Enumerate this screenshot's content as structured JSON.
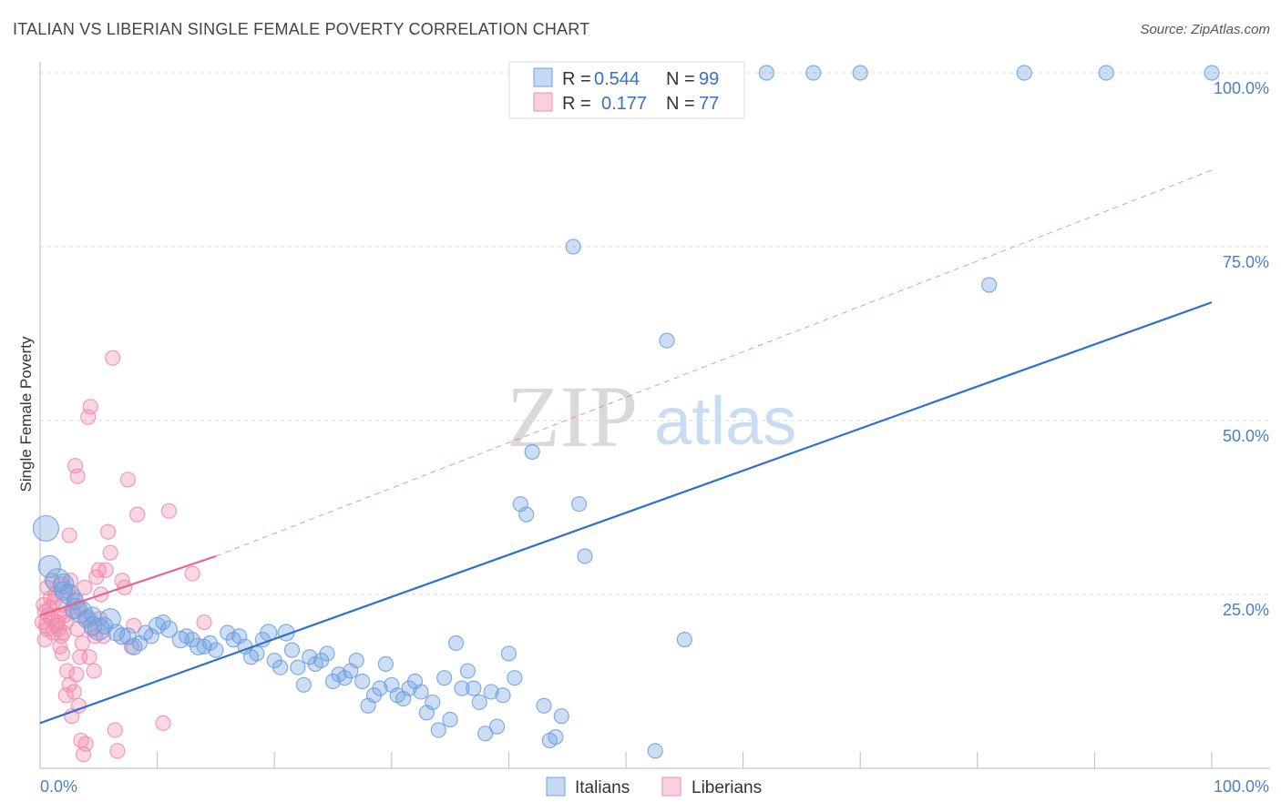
{
  "header": {
    "title": "ITALIAN VS LIBERIAN SINGLE FEMALE POVERTY CORRELATION CHART",
    "source": "Source: ZipAtlas.com"
  },
  "colors": {
    "italians": "#6fa0e0",
    "italians_line": "#2f6fd0",
    "liberians": "#f08cab",
    "liberians_line": "#e06890",
    "grid": "#d8d8d8",
    "tick_label": "#4a7ec8"
  },
  "legend": {
    "r_label": "R =",
    "n_label": "N =",
    "italians_r": "0.544",
    "italians_n": "99",
    "liberians_r": "0.177",
    "liberians_n": "77"
  },
  "watermark": {
    "zip": "ZIP",
    "atlas": "atlas"
  },
  "chart_data": {
    "type": "scatter",
    "title": "ITALIAN VS LIBERIAN SINGLE FEMALE POVERTY CORRELATION CHART",
    "xlabel": "",
    "ylabel": "Single Female Poverty",
    "xlim": [
      0,
      100
    ],
    "ylim": [
      0,
      100
    ],
    "x_tick_labels": [
      "0.0%",
      "100.0%"
    ],
    "y_tick_labels": [
      "25.0%",
      "50.0%",
      "75.0%",
      "100.0%"
    ],
    "y_ticks": [
      25,
      50,
      75,
      100
    ],
    "legend_position": "top-center",
    "series": [
      {
        "name": "Italians",
        "r": 0.544,
        "n": 99,
        "trend": {
          "x": [
            0,
            100
          ],
          "y": [
            6.5,
            67
          ]
        },
        "points": [
          [
            0.5,
            34.5,
            14
          ],
          [
            0.8,
            29,
            12
          ],
          [
            1.5,
            27,
            13
          ],
          [
            2,
            26.5,
            11
          ],
          [
            2.5,
            25,
            11
          ],
          [
            3,
            23,
            11
          ],
          [
            3.5,
            22.5,
            12
          ],
          [
            4,
            21.5,
            10
          ],
          [
            4.5,
            20.5,
            10
          ],
          [
            5,
            20,
            12
          ],
          [
            5.5,
            20.5,
            9
          ],
          [
            6,
            21.5,
            11
          ],
          [
            6.5,
            19.5,
            9
          ],
          [
            7,
            19,
            9
          ],
          [
            7.5,
            19,
            9
          ],
          [
            8,
            17.5,
            9
          ],
          [
            8.5,
            18,
            8
          ],
          [
            9,
            19.5,
            8
          ],
          [
            9.5,
            19,
            8
          ],
          [
            10,
            20.5,
            9
          ],
          [
            10.5,
            21,
            8
          ],
          [
            11,
            20,
            9
          ],
          [
            12,
            18.5,
            9
          ],
          [
            12.5,
            19,
            8
          ],
          [
            13,
            18.5,
            8
          ],
          [
            13.5,
            17.5,
            9
          ],
          [
            14,
            17.5,
            8
          ],
          [
            14.5,
            18,
            8
          ],
          [
            15,
            17,
            8
          ],
          [
            16,
            19.5,
            8
          ],
          [
            16.5,
            18.5,
            8
          ],
          [
            17,
            19,
            8
          ],
          [
            17.5,
            17.5,
            8
          ],
          [
            18,
            16,
            8
          ],
          [
            18.5,
            16.5,
            8
          ],
          [
            19,
            18.5,
            8
          ],
          [
            19.5,
            19.5,
            9
          ],
          [
            20,
            15.5,
            8
          ],
          [
            20.5,
            14.5,
            8
          ],
          [
            21,
            19.5,
            9
          ],
          [
            21.5,
            17,
            8
          ],
          [
            22,
            14.5,
            8
          ],
          [
            22.5,
            12,
            8
          ],
          [
            23,
            16,
            8
          ],
          [
            23.5,
            15,
            8
          ],
          [
            24,
            15.5,
            8
          ],
          [
            24.5,
            16.5,
            8
          ],
          [
            25,
            12.5,
            8
          ],
          [
            25.5,
            13.5,
            8
          ],
          [
            26,
            13,
            8
          ],
          [
            26.5,
            14,
            8
          ],
          [
            27,
            15.5,
            8
          ],
          [
            27.5,
            12.5,
            8
          ],
          [
            28,
            9,
            8
          ],
          [
            28.5,
            10.5,
            8
          ],
          [
            29,
            11.5,
            8
          ],
          [
            29.5,
            15,
            8
          ],
          [
            30,
            12,
            8
          ],
          [
            30.5,
            10.5,
            8
          ],
          [
            31,
            10,
            8
          ],
          [
            31.5,
            11.5,
            8
          ],
          [
            32,
            12.5,
            8
          ],
          [
            32.5,
            11,
            8
          ],
          [
            33,
            8,
            8
          ],
          [
            33.5,
            9.5,
            8
          ],
          [
            34,
            5.5,
            8
          ],
          [
            34.5,
            13,
            8
          ],
          [
            35,
            7,
            8
          ],
          [
            35.5,
            18,
            8
          ],
          [
            36,
            11.5,
            8
          ],
          [
            36.5,
            14,
            8
          ],
          [
            37,
            11.5,
            8
          ],
          [
            37.5,
            9.5,
            8
          ],
          [
            38,
            5,
            8
          ],
          [
            38.5,
            11,
            8
          ],
          [
            39,
            6,
            8
          ],
          [
            39.5,
            10.5,
            8
          ],
          [
            40,
            16.5,
            8
          ],
          [
            40.5,
            13,
            8
          ],
          [
            41,
            38,
            8
          ],
          [
            41.5,
            36.5,
            8
          ],
          [
            42,
            45.5,
            8
          ],
          [
            43,
            9,
            8
          ],
          [
            43.5,
            4,
            8
          ],
          [
            44,
            4.5,
            8
          ],
          [
            44.5,
            7.5,
            8
          ],
          [
            46,
            38,
            8
          ],
          [
            46.5,
            30.5,
            8
          ],
          [
            45.5,
            75,
            8
          ],
          [
            52.5,
            2.5,
            8
          ],
          [
            53.5,
            61.5,
            8
          ],
          [
            55,
            18.5,
            8
          ],
          [
            62,
            100,
            8
          ],
          [
            66,
            100,
            8
          ],
          [
            70,
            100,
            8
          ],
          [
            81,
            69.5,
            8
          ],
          [
            84,
            100,
            8
          ],
          [
            91,
            100,
            8
          ],
          [
            100,
            100,
            8
          ],
          [
            4.5,
            22,
            9
          ],
          [
            3,
            24,
            9
          ],
          [
            2,
            25.5,
            10
          ]
        ]
      },
      {
        "name": "Liberians",
        "r": 0.177,
        "n": 77,
        "trend": {
          "x": [
            0,
            15
          ],
          "y": [
            22,
            30.5
          ]
        },
        "trend_extension": {
          "x": [
            15,
            100
          ],
          "y": [
            30.5,
            86
          ]
        },
        "points": [
          [
            0.2,
            21,
            8
          ],
          [
            0.4,
            22.5,
            8
          ],
          [
            0.6,
            20,
            8
          ],
          [
            0.8,
            23,
            8
          ],
          [
            1,
            21.5,
            8
          ],
          [
            1.2,
            24,
            8
          ],
          [
            1.4,
            20.5,
            8
          ],
          [
            1.6,
            22,
            8
          ],
          [
            1.8,
            19,
            8
          ],
          [
            2,
            23.5,
            8
          ],
          [
            2.2,
            21,
            8
          ],
          [
            2.4,
            25.5,
            8
          ],
          [
            2.6,
            27,
            8
          ],
          [
            2.8,
            22.5,
            8
          ],
          [
            3,
            24.5,
            8
          ],
          [
            3.2,
            20,
            8
          ],
          [
            3.4,
            23,
            8
          ],
          [
            3.6,
            18,
            8
          ],
          [
            3.8,
            26,
            8
          ],
          [
            4,
            21.5,
            8
          ],
          [
            0.3,
            23.5,
            8
          ],
          [
            0.5,
            20.5,
            8
          ],
          [
            0.7,
            22,
            8
          ],
          [
            0.9,
            24.5,
            8
          ],
          [
            1.1,
            19.5,
            8
          ],
          [
            1.3,
            25,
            8
          ],
          [
            1.5,
            21,
            8
          ],
          [
            1.7,
            17.5,
            8
          ],
          [
            1.9,
            16.5,
            8
          ],
          [
            2.1,
            22,
            8
          ],
          [
            2.3,
            14,
            8
          ],
          [
            2.5,
            12,
            8
          ],
          [
            2.7,
            7.5,
            8
          ],
          [
            2.9,
            11,
            8
          ],
          [
            3.1,
            13.5,
            8
          ],
          [
            3.3,
            9,
            8
          ],
          [
            3.5,
            4,
            8
          ],
          [
            3.7,
            2,
            8
          ],
          [
            3.9,
            3.5,
            8
          ],
          [
            4.2,
            16,
            8
          ],
          [
            4.4,
            20,
            8
          ],
          [
            4.6,
            14,
            8
          ],
          [
            4.8,
            27.5,
            8
          ],
          [
            5,
            28.5,
            8
          ],
          [
            5.2,
            25,
            8
          ],
          [
            5.4,
            19,
            8
          ],
          [
            5.6,
            28.5,
            8
          ],
          [
            5.8,
            34,
            8
          ],
          [
            6,
            31,
            8
          ],
          [
            6.2,
            59,
            8
          ],
          [
            6.4,
            5.5,
            8
          ],
          [
            6.6,
            2.5,
            8
          ],
          [
            7,
            27,
            8
          ],
          [
            7.2,
            26,
            8
          ],
          [
            7.5,
            41.5,
            8
          ],
          [
            7.8,
            17.5,
            8
          ],
          [
            8,
            20.5,
            8
          ],
          [
            8.3,
            36.5,
            8
          ],
          [
            10.5,
            6.5,
            8
          ],
          [
            11,
            37,
            8
          ],
          [
            13,
            28,
            8
          ],
          [
            14,
            21,
            8
          ],
          [
            4.1,
            50.5,
            8
          ],
          [
            4.3,
            52,
            8
          ],
          [
            3.2,
            42,
            8
          ],
          [
            3.0,
            43.5,
            8
          ],
          [
            2.5,
            33.5,
            8
          ],
          [
            1.8,
            26.5,
            8
          ],
          [
            1.0,
            27,
            8
          ],
          [
            0.6,
            26,
            8
          ],
          [
            0.4,
            18.5,
            8
          ],
          [
            1.6,
            20,
            8
          ],
          [
            2.0,
            19.5,
            8
          ],
          [
            4.7,
            19,
            8
          ],
          [
            5.1,
            21.5,
            8
          ],
          [
            3.4,
            16,
            8
          ],
          [
            2.2,
            10.5,
            8
          ]
        ]
      }
    ],
    "bottom_legend": [
      "Italians",
      "Liberians"
    ]
  }
}
